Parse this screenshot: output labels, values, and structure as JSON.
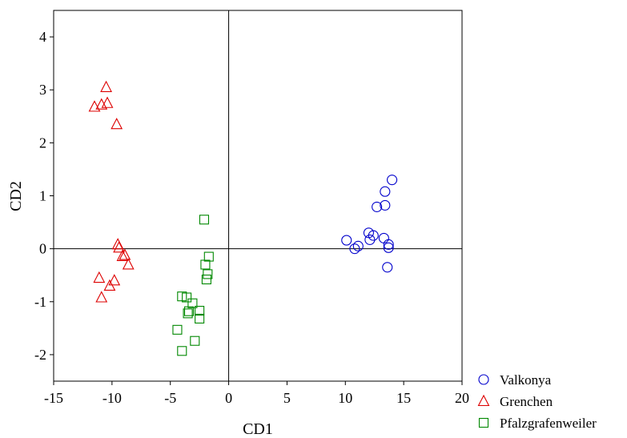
{
  "chart_data": {
    "type": "scatter",
    "xlabel": "CD1",
    "ylabel": "CD2",
    "xlim": [
      -15,
      20
    ],
    "ylim": [
      -2.5,
      4.5
    ],
    "x_ticks": [
      -15,
      -10,
      -5,
      0,
      5,
      10,
      15,
      20
    ],
    "y_ticks": [
      -2,
      -1,
      0,
      1,
      2,
      3,
      4
    ],
    "grid": false,
    "reference_lines": {
      "x": 0,
      "y": 0
    },
    "legend_position": "bottom-right-outside",
    "series": [
      {
        "name": "Valkonya",
        "marker": "circle",
        "color": "#0000CC",
        "points": [
          [
            14.0,
            1.3
          ],
          [
            13.4,
            1.08
          ],
          [
            13.4,
            0.82
          ],
          [
            12.7,
            0.79
          ],
          [
            10.1,
            0.16
          ],
          [
            11.1,
            0.05
          ],
          [
            10.8,
            0.0
          ],
          [
            12.0,
            0.3
          ],
          [
            12.4,
            0.25
          ],
          [
            12.1,
            0.17
          ],
          [
            13.3,
            0.2
          ],
          [
            13.7,
            0.08
          ],
          [
            13.7,
            0.02
          ],
          [
            13.6,
            -0.35
          ]
        ]
      },
      {
        "name": "Grenchen",
        "marker": "triangle",
        "color": "#DD0000",
        "points": [
          [
            -10.5,
            3.05
          ],
          [
            -10.4,
            2.75
          ],
          [
            -11.5,
            2.68
          ],
          [
            -10.9,
            2.72
          ],
          [
            -9.6,
            2.35
          ],
          [
            -9.5,
            0.08
          ],
          [
            -9.4,
            0.02
          ],
          [
            -9.1,
            -0.14
          ],
          [
            -8.9,
            -0.12
          ],
          [
            -8.6,
            -0.3
          ],
          [
            -11.1,
            -0.55
          ],
          [
            -9.8,
            -0.6
          ],
          [
            -10.2,
            -0.7
          ],
          [
            -10.9,
            -0.92
          ]
        ]
      },
      {
        "name": "Pfalzgrafenweiler",
        "marker": "square",
        "color": "#008800",
        "points": [
          [
            -2.1,
            0.55
          ],
          [
            -1.7,
            -0.15
          ],
          [
            -2.0,
            -0.3
          ],
          [
            -1.8,
            -0.48
          ],
          [
            -1.9,
            -0.58
          ],
          [
            -4.0,
            -0.9
          ],
          [
            -3.6,
            -0.92
          ],
          [
            -3.1,
            -1.03
          ],
          [
            -3.4,
            -1.18
          ],
          [
            -3.5,
            -1.22
          ],
          [
            -2.5,
            -1.17
          ],
          [
            -2.5,
            -1.32
          ],
          [
            -4.4,
            -1.53
          ],
          [
            -2.9,
            -1.74
          ],
          [
            -4.0,
            -1.93
          ]
        ]
      }
    ]
  }
}
